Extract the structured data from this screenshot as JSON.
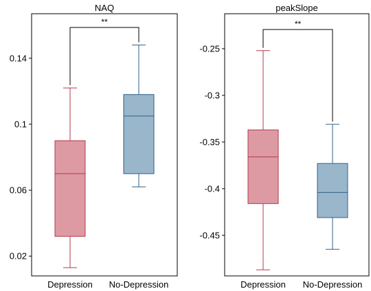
{
  "chart_data": [
    {
      "type": "box",
      "title": "NAQ",
      "categories": [
        "Depression",
        "No-Depression"
      ],
      "yticks": [
        0.02,
        0.06,
        0.1,
        0.14
      ],
      "ytick_labels": [
        "0.02",
        "0.06",
        "0.1",
        "0.14"
      ],
      "ylim": [
        0.008,
        0.167
      ],
      "series": [
        {
          "category": "Depression",
          "min": 0.013,
          "q1": 0.032,
          "median": 0.07,
          "q3": 0.09,
          "max": 0.122,
          "color": "#b03a4a",
          "fill": "#dd9aa2"
        },
        {
          "category": "No-Depression",
          "min": 0.062,
          "q1": 0.07,
          "median": 0.105,
          "q3": 0.118,
          "max": 0.148,
          "color": "#2f5f87",
          "fill": "#9ab6cb"
        }
      ],
      "significance": "**",
      "grid": false,
      "legend": "none"
    },
    {
      "type": "box",
      "title": "peakSlope",
      "categories": [
        "Depression",
        "No-Depression"
      ],
      "yticks": [
        -0.45,
        -0.4,
        -0.35,
        -0.3,
        -0.25
      ],
      "ytick_labels": [
        "-0.45",
        "-0.4",
        "-0.35",
        "-0.3",
        "-0.25"
      ],
      "ylim": [
        -0.4935,
        -0.2125
      ],
      "series": [
        {
          "category": "Depression",
          "min": -0.487,
          "q1": -0.416,
          "median": -0.366,
          "q3": -0.337,
          "max": -0.252,
          "color": "#b03a4a",
          "fill": "#dd9aa2"
        },
        {
          "category": "No-Depression",
          "min": -0.465,
          "q1": -0.431,
          "median": -0.404,
          "q3": -0.373,
          "max": -0.331,
          "color": "#2f5f87",
          "fill": "#9ab6cb"
        }
      ],
      "significance": "**",
      "grid": false,
      "legend": "none"
    }
  ]
}
